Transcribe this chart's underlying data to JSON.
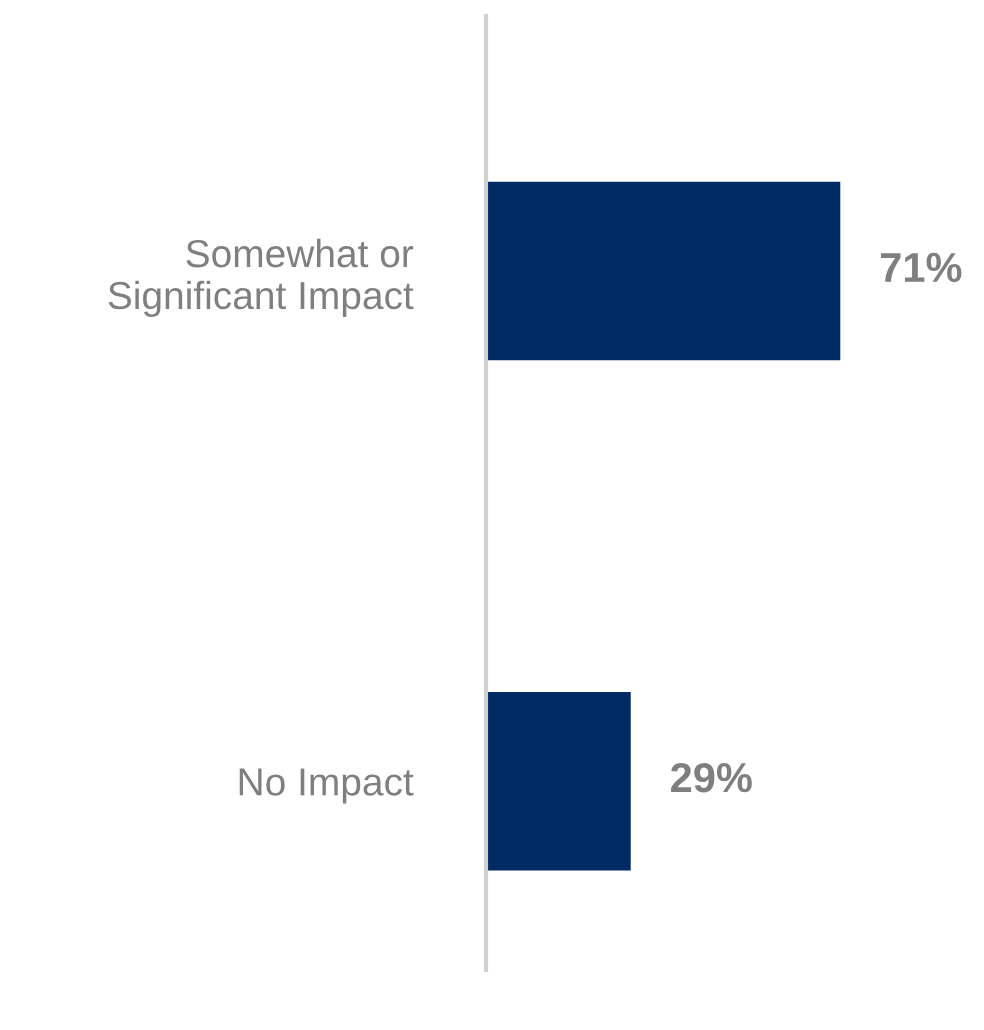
{
  "chart_data": {
    "type": "bar",
    "orientation": "horizontal",
    "categories": [
      "Somewhat or\nSignificant Impact",
      "No Impact"
    ],
    "values": [
      71,
      29
    ],
    "value_labels": [
      "71%",
      "29%"
    ],
    "color": "#002b62",
    "grid": false,
    "legend": false,
    "tick_labels": "y"
  }
}
